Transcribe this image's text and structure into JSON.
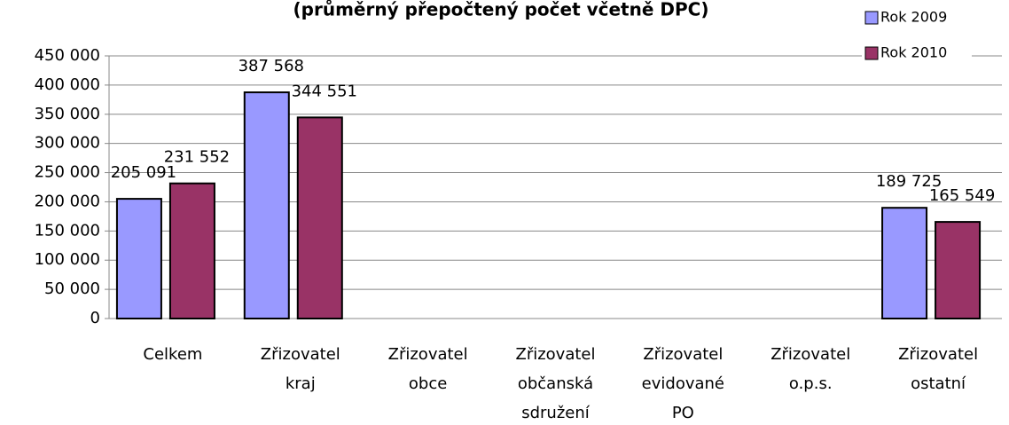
{
  "chart_data": {
    "type": "bar",
    "title": "(průměrný přepočtený počet včetně DPC)",
    "categories": [
      [
        "Celkem"
      ],
      [
        "Zřizovatel",
        "kraj"
      ],
      [
        "Zřizovatel",
        "obce"
      ],
      [
        "Zřizovatel",
        "občanská",
        "sdružení"
      ],
      [
        "Zřizovatel",
        "evidované",
        "PO"
      ],
      [
        "Zřizovatel",
        "o.p.s."
      ],
      [
        "Zřizovatel",
        "ostatní"
      ]
    ],
    "series": [
      {
        "name": "Rok 2009",
        "color": "#9999ff",
        "values": [
          205091,
          387568,
          null,
          null,
          null,
          null,
          189725
        ],
        "value_labels": [
          "205 091",
          "387 568",
          null,
          null,
          null,
          null,
          "189 725"
        ]
      },
      {
        "name": "Rok 2010",
        "color": "#993366",
        "values": [
          231552,
          344551,
          null,
          null,
          null,
          null,
          165549
        ],
        "value_labels": [
          "231 552",
          "344 551",
          null,
          null,
          null,
          null,
          "165 549"
        ]
      }
    ],
    "ylim": [
      0,
      450000
    ],
    "yticks": [
      0,
      {
        "value": 50000,
        "label": "50 000"
      },
      {
        "value": 100000,
        "label": "100 000"
      },
      {
        "value": 150000,
        "label": "150 000"
      },
      {
        "value": 200000,
        "label": "200 000"
      },
      {
        "value": 250000,
        "label": "250 000"
      },
      {
        "value": 300000,
        "label": "300 000"
      },
      {
        "value": 350000,
        "label": "350 000"
      },
      {
        "value": 400000,
        "label": "400 000"
      },
      {
        "value": 450000,
        "label": "450 000"
      }
    ],
    "grid": true,
    "legend": "top-right"
  }
}
